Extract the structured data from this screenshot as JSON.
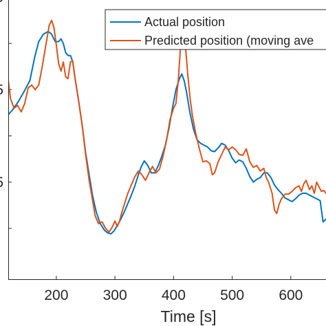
{
  "chart_data": {
    "type": "line",
    "xlabel": "Time [s]",
    "ylabel": "",
    "xlim": [
      118,
      660
    ],
    "ylim": [
      0.45,
      3.47
    ],
    "x_ticks": [
      {
        "value": 200,
        "label": "200"
      },
      {
        "value": 300,
        "label": "300"
      },
      {
        "value": 400,
        "label": "400"
      },
      {
        "value": 500,
        "label": "500"
      },
      {
        "value": 600,
        "label": "600"
      }
    ],
    "y_ticks": [
      {
        "value": 1,
        "label": ""
      },
      {
        "value": 1.5,
        "label": "5"
      },
      {
        "value": 2,
        "label": ""
      },
      {
        "value": 2.5,
        "label": "5"
      },
      {
        "value": 3,
        "label": ""
      },
      {
        "value": 3.5,
        "label": "5"
      }
    ],
    "legend": {
      "location": "top-right",
      "entries": [
        "Actual position",
        "Predicted position (moving ave"
      ]
    },
    "series": [
      {
        "name": "Actual position",
        "color": "#0072BD",
        "points": [
          [
            118,
            2.23
          ],
          [
            125,
            2.28
          ],
          [
            135,
            2.37
          ],
          [
            145,
            2.48
          ],
          [
            155,
            2.6
          ],
          [
            163,
            2.85
          ],
          [
            170,
            3.02
          ],
          [
            178,
            3.1
          ],
          [
            186,
            3.13
          ],
          [
            192,
            3.1
          ],
          [
            198,
            3.02
          ],
          [
            204,
            3.02
          ],
          [
            208,
            3.05
          ],
          [
            212,
            3.0
          ],
          [
            216,
            2.9
          ],
          [
            220,
            2.87
          ],
          [
            224,
            2.87
          ],
          [
            228,
            2.8
          ],
          [
            232,
            2.62
          ],
          [
            238,
            2.38
          ],
          [
            244,
            2.12
          ],
          [
            250,
            1.82
          ],
          [
            256,
            1.58
          ],
          [
            262,
            1.35
          ],
          [
            268,
            1.18
          ],
          [
            275,
            1.05
          ],
          [
            282,
            0.98
          ],
          [
            288,
            0.95
          ],
          [
            293,
            0.94
          ],
          [
            298,
            0.97
          ],
          [
            304,
            1.03
          ],
          [
            310,
            1.1
          ],
          [
            316,
            1.18
          ],
          [
            322,
            1.27
          ],
          [
            328,
            1.36
          ],
          [
            334,
            1.46
          ],
          [
            340,
            1.58
          ],
          [
            345,
            1.67
          ],
          [
            350,
            1.73
          ],
          [
            356,
            1.68
          ],
          [
            362,
            1.6
          ],
          [
            368,
            1.6
          ],
          [
            374,
            1.68
          ],
          [
            380,
            1.78
          ],
          [
            386,
            1.9
          ],
          [
            392,
            2.08
          ],
          [
            398,
            2.3
          ],
          [
            404,
            2.5
          ],
          [
            410,
            2.62
          ],
          [
            414,
            2.67
          ],
          [
            418,
            2.6
          ],
          [
            422,
            2.48
          ],
          [
            428,
            2.25
          ],
          [
            434,
            2.07
          ],
          [
            440,
            1.96
          ],
          [
            446,
            1.92
          ],
          [
            452,
            1.9
          ],
          [
            458,
            1.88
          ],
          [
            464,
            1.84
          ],
          [
            470,
            1.83
          ],
          [
            476,
            1.87
          ],
          [
            482,
            1.92
          ],
          [
            488,
            1.9
          ],
          [
            494,
            1.84
          ],
          [
            500,
            1.76
          ],
          [
            506,
            1.71
          ],
          [
            512,
            1.74
          ],
          [
            518,
            1.72
          ],
          [
            524,
            1.65
          ],
          [
            530,
            1.56
          ],
          [
            536,
            1.5
          ],
          [
            542,
            1.53
          ],
          [
            548,
            1.55
          ],
          [
            554,
            1.6
          ],
          [
            560,
            1.6
          ],
          [
            566,
            1.55
          ],
          [
            572,
            1.47
          ],
          [
            578,
            1.42
          ],
          [
            584,
            1.38
          ],
          [
            590,
            1.33
          ],
          [
            596,
            1.31
          ],
          [
            602,
            1.29
          ],
          [
            608,
            1.32
          ],
          [
            614,
            1.36
          ],
          [
            620,
            1.38
          ],
          [
            626,
            1.38
          ],
          [
            632,
            1.36
          ],
          [
            638,
            1.34
          ],
          [
            644,
            1.32
          ],
          [
            650,
            1.3
          ],
          [
            655,
            1.07
          ],
          [
            660,
            1.1
          ]
        ]
      },
      {
        "name": "Predicted position (moving ave",
        "color": "#D95319",
        "points": [
          [
            118,
            2.6
          ],
          [
            122,
            2.4
          ],
          [
            128,
            2.3
          ],
          [
            134,
            2.33
          ],
          [
            140,
            2.26
          ],
          [
            146,
            2.35
          ],
          [
            152,
            2.52
          ],
          [
            158,
            2.55
          ],
          [
            164,
            2.5
          ],
          [
            170,
            2.55
          ],
          [
            176,
            2.75
          ],
          [
            182,
            2.98
          ],
          [
            188,
            3.2
          ],
          [
            192,
            3.25
          ],
          [
            196,
            3.17
          ],
          [
            200,
            2.98
          ],
          [
            204,
            2.78
          ],
          [
            208,
            2.7
          ],
          [
            212,
            2.8
          ],
          [
            216,
            2.64
          ],
          [
            220,
            2.62
          ],
          [
            224,
            2.8
          ],
          [
            228,
            2.81
          ],
          [
            232,
            2.62
          ],
          [
            238,
            2.38
          ],
          [
            244,
            2.12
          ],
          [
            250,
            1.8
          ],
          [
            256,
            1.52
          ],
          [
            262,
            1.3
          ],
          [
            266,
            1.14
          ],
          [
            272,
            1.05
          ],
          [
            278,
            1.07
          ],
          [
            284,
            1.0
          ],
          [
            290,
            0.96
          ],
          [
            296,
            1.02
          ],
          [
            300,
            1.08
          ],
          [
            304,
            1.02
          ],
          [
            308,
            1.08
          ],
          [
            312,
            1.18
          ],
          [
            318,
            1.3
          ],
          [
            322,
            1.38
          ],
          [
            328,
            1.47
          ],
          [
            334,
            1.56
          ],
          [
            340,
            1.62
          ],
          [
            346,
            1.58
          ],
          [
            352,
            1.52
          ],
          [
            358,
            1.6
          ],
          [
            364,
            1.67
          ],
          [
            370,
            1.6
          ],
          [
            376,
            1.64
          ],
          [
            382,
            1.78
          ],
          [
            388,
            1.95
          ],
          [
            394,
            2.18
          ],
          [
            400,
            2.3
          ],
          [
            404,
            2.35
          ],
          [
            408,
            2.6
          ],
          [
            412,
            2.98
          ],
          [
            416,
            3.15
          ],
          [
            420,
            3.0
          ],
          [
            424,
            2.68
          ],
          [
            428,
            2.42
          ],
          [
            432,
            2.22
          ],
          [
            438,
            2.02
          ],
          [
            444,
            1.86
          ],
          [
            450,
            1.72
          ],
          [
            456,
            1.73
          ],
          [
            462,
            1.7
          ],
          [
            466,
            1.58
          ],
          [
            470,
            1.6
          ],
          [
            476,
            1.72
          ],
          [
            482,
            1.8
          ],
          [
            488,
            1.88
          ],
          [
            494,
            1.85
          ],
          [
            500,
            1.88
          ],
          [
            506,
            1.85
          ],
          [
            512,
            1.8
          ],
          [
            518,
            1.79
          ],
          [
            524,
            1.86
          ],
          [
            530,
            1.72
          ],
          [
            536,
            1.66
          ],
          [
            542,
            1.68
          ],
          [
            548,
            1.62
          ],
          [
            554,
            1.65
          ],
          [
            558,
            1.55
          ],
          [
            562,
            1.5
          ],
          [
            568,
            1.38
          ],
          [
            572,
            1.2
          ],
          [
            576,
            1.16
          ],
          [
            580,
            1.26
          ],
          [
            584,
            1.32
          ],
          [
            590,
            1.37
          ],
          [
            596,
            1.37
          ],
          [
            602,
            1.4
          ],
          [
            608,
            1.44
          ],
          [
            614,
            1.46
          ],
          [
            618,
            1.4
          ],
          [
            622,
            1.48
          ],
          [
            626,
            1.52
          ],
          [
            632,
            1.42
          ],
          [
            636,
            1.46
          ],
          [
            640,
            1.38
          ],
          [
            644,
            1.5
          ],
          [
            648,
            1.45
          ],
          [
            652,
            1.4
          ],
          [
            656,
            1.41
          ],
          [
            660,
            1.38
          ]
        ]
      }
    ]
  }
}
